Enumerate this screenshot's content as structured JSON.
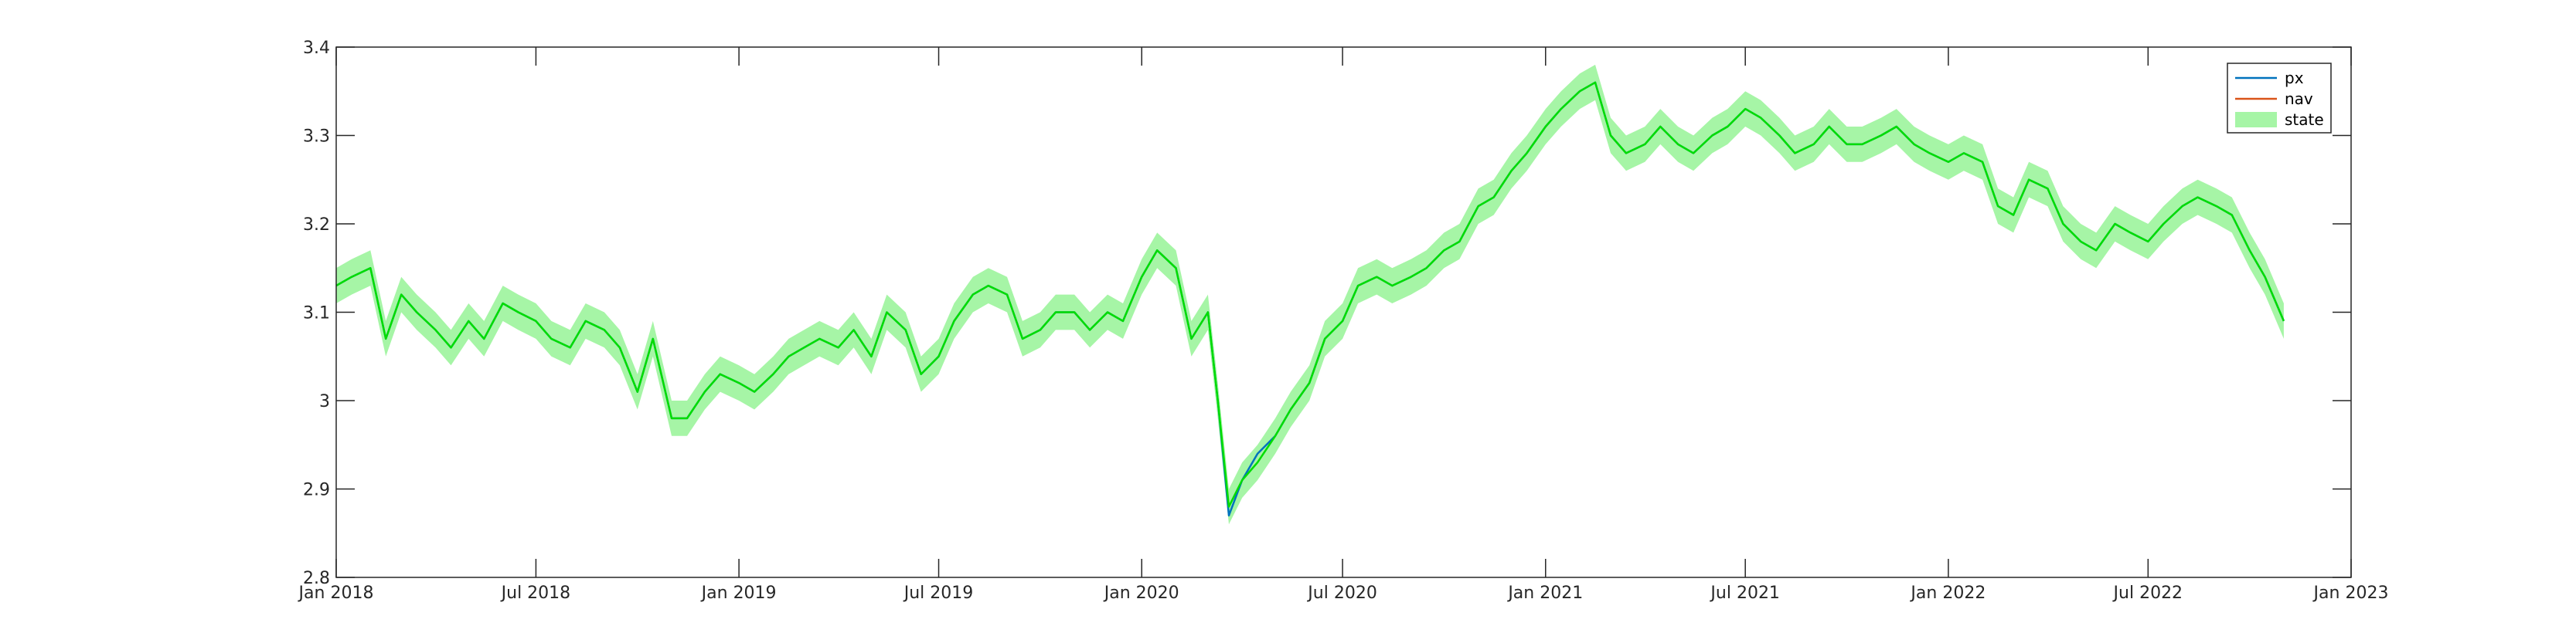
{
  "chart_data": {
    "type": "line",
    "title": "",
    "xlabel": "",
    "ylabel": "",
    "xlim": [
      "2018-01-01",
      "2023-01-01"
    ],
    "ylim": [
      2.8,
      3.4
    ],
    "x_ticks": [
      "2018-01-01",
      "2018-07-01",
      "2019-01-01",
      "2019-07-01",
      "2020-01-01",
      "2020-07-01",
      "2021-01-01",
      "2021-07-01",
      "2022-01-01",
      "2022-07-01",
      "2023-01-01"
    ],
    "x_tick_labels": [
      "Jan 2018",
      "Jul 2018",
      "Jan 2019",
      "Jul 2019",
      "Jan 2020",
      "Jul 2020",
      "Jan 2021",
      "Jul 2021",
      "Jan 2022",
      "Jul 2022",
      "Jan 2023"
    ],
    "y_ticks": [
      2.8,
      2.9,
      3.0,
      3.1,
      3.2,
      3.3,
      3.4
    ],
    "y_tick_labels": [
      "2.8",
      "2.9",
      "3",
      "3.1",
      "3.2",
      "3.3",
      "3.4"
    ],
    "grid": false,
    "legend_position": "top-right",
    "legend": [
      {
        "name": "px",
        "color": "#0072bd",
        "kind": "line"
      },
      {
        "name": "nav",
        "color": "#d95319",
        "kind": "line"
      },
      {
        "name": "state",
        "color": "#a6f5a6",
        "kind": "band"
      }
    ],
    "state_color": "#00dd00",
    "state_band_halfwidth": 0.02,
    "x": [
      "2018-01-01",
      "2018-01-15",
      "2018-02-01",
      "2018-02-15",
      "2018-03-01",
      "2018-03-15",
      "2018-04-01",
      "2018-04-15",
      "2018-05-01",
      "2018-05-15",
      "2018-06-01",
      "2018-06-15",
      "2018-07-01",
      "2018-07-15",
      "2018-08-01",
      "2018-08-15",
      "2018-09-01",
      "2018-09-15",
      "2018-10-01",
      "2018-10-15",
      "2018-11-01",
      "2018-11-15",
      "2018-12-01",
      "2018-12-15",
      "2019-01-01",
      "2019-01-15",
      "2019-02-01",
      "2019-02-15",
      "2019-03-01",
      "2019-03-15",
      "2019-04-01",
      "2019-04-15",
      "2019-05-01",
      "2019-05-15",
      "2019-06-01",
      "2019-06-15",
      "2019-07-01",
      "2019-07-15",
      "2019-08-01",
      "2019-08-15",
      "2019-09-01",
      "2019-09-15",
      "2019-10-01",
      "2019-10-15",
      "2019-11-01",
      "2019-11-15",
      "2019-12-01",
      "2019-12-15",
      "2020-01-01",
      "2020-01-15",
      "2020-02-01",
      "2020-02-15",
      "2020-03-01",
      "2020-03-10",
      "2020-03-20",
      "2020-04-01",
      "2020-04-15",
      "2020-05-01",
      "2020-05-15",
      "2020-06-01",
      "2020-06-15",
      "2020-07-01",
      "2020-07-15",
      "2020-08-01",
      "2020-08-15",
      "2020-09-01",
      "2020-09-15",
      "2020-10-01",
      "2020-10-15",
      "2020-11-01",
      "2020-11-15",
      "2020-12-01",
      "2020-12-15",
      "2021-01-01",
      "2021-01-15",
      "2021-02-01",
      "2021-02-15",
      "2021-03-01",
      "2021-03-15",
      "2021-04-01",
      "2021-04-15",
      "2021-05-01",
      "2021-05-15",
      "2021-06-01",
      "2021-06-15",
      "2021-07-01",
      "2021-07-15",
      "2021-08-01",
      "2021-08-15",
      "2021-09-01",
      "2021-09-15",
      "2021-10-01",
      "2021-10-15",
      "2021-11-01",
      "2021-11-15",
      "2021-12-01",
      "2021-12-15",
      "2022-01-01",
      "2022-01-15",
      "2022-02-01",
      "2022-02-15",
      "2022-03-01",
      "2022-03-15",
      "2022-04-01",
      "2022-04-15",
      "2022-05-01",
      "2022-05-15",
      "2022-06-01",
      "2022-06-15",
      "2022-07-01",
      "2022-07-15",
      "2022-08-01",
      "2022-08-15",
      "2022-09-01",
      "2022-09-15",
      "2022-10-01",
      "2022-10-15",
      "2022-11-01"
    ],
    "series": [
      {
        "name": "state",
        "values": [
          3.13,
          3.14,
          3.15,
          3.07,
          3.12,
          3.1,
          3.08,
          3.06,
          3.09,
          3.07,
          3.11,
          3.1,
          3.09,
          3.07,
          3.06,
          3.09,
          3.08,
          3.06,
          3.01,
          3.07,
          2.98,
          2.98,
          3.01,
          3.03,
          3.02,
          3.01,
          3.03,
          3.05,
          3.06,
          3.07,
          3.06,
          3.08,
          3.05,
          3.1,
          3.08,
          3.03,
          3.05,
          3.09,
          3.12,
          3.13,
          3.12,
          3.07,
          3.08,
          3.1,
          3.1,
          3.08,
          3.1,
          3.09,
          3.14,
          3.17,
          3.15,
          3.07,
          3.1,
          3.0,
          2.88,
          2.91,
          2.93,
          2.96,
          2.99,
          3.02,
          3.07,
          3.09,
          3.13,
          3.14,
          3.13,
          3.14,
          3.15,
          3.17,
          3.18,
          3.22,
          3.23,
          3.26,
          3.28,
          3.31,
          3.33,
          3.35,
          3.36,
          3.3,
          3.28,
          3.29,
          3.31,
          3.29,
          3.28,
          3.3,
          3.31,
          3.33,
          3.32,
          3.3,
          3.28,
          3.29,
          3.31,
          3.29,
          3.29,
          3.3,
          3.31,
          3.29,
          3.28,
          3.27,
          3.28,
          3.27,
          3.22,
          3.21,
          3.25,
          3.24,
          3.2,
          3.18,
          3.17,
          3.2,
          3.19,
          3.18,
          3.2,
          3.22,
          3.23,
          3.22,
          3.21,
          3.17,
          3.14,
          3.09
        ]
      },
      {
        "name": "px",
        "values": [
          3.13,
          3.14,
          3.15,
          3.07,
          3.12,
          3.1,
          3.08,
          3.06,
          3.09,
          3.07,
          3.11,
          3.1,
          3.09,
          3.07,
          3.06,
          3.09,
          3.08,
          3.06,
          3.01,
          3.07,
          2.98,
          2.98,
          3.01,
          3.03,
          3.02,
          3.01,
          3.03,
          3.05,
          3.06,
          3.07,
          3.06,
          3.08,
          3.05,
          3.1,
          3.08,
          3.03,
          3.05,
          3.09,
          3.12,
          3.13,
          3.12,
          3.07,
          3.08,
          3.1,
          3.1,
          3.08,
          3.1,
          3.09,
          3.14,
          3.17,
          3.15,
          3.07,
          3.1,
          3.0,
          2.87,
          2.91,
          2.94,
          2.96,
          2.99,
          3.02,
          3.07,
          3.09,
          3.13,
          3.14,
          3.13,
          3.14,
          3.15,
          3.17,
          3.18,
          3.22,
          3.23,
          3.26,
          3.28,
          3.31,
          3.33,
          3.35,
          3.36,
          3.3,
          3.28,
          3.29,
          3.31,
          3.29,
          3.28,
          3.3,
          3.31,
          3.33,
          3.32,
          3.3,
          3.28,
          3.29,
          3.31,
          3.29,
          3.29,
          3.3,
          3.31,
          3.29,
          3.28,
          3.27,
          3.28,
          3.27,
          3.22,
          3.21,
          3.25,
          3.24,
          3.2,
          3.18,
          3.17,
          3.2,
          3.19,
          3.18,
          3.2,
          3.22,
          3.23,
          3.22,
          3.21,
          3.17,
          3.14,
          3.09
        ]
      }
    ]
  }
}
